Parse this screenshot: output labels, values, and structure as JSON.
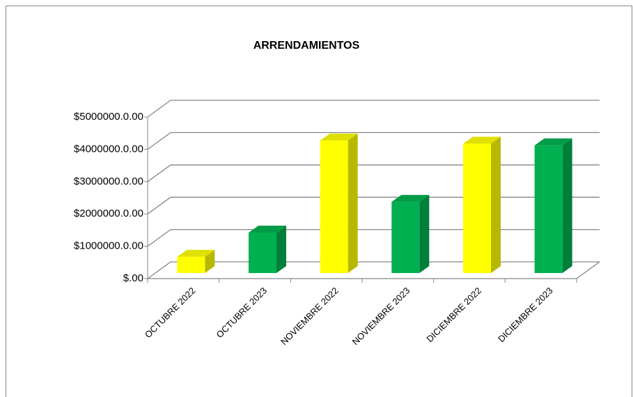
{
  "chart_data": {
    "type": "bar3d",
    "title": "ARRENDAMIENTOS",
    "categories": [
      "OCTUBRE 2022",
      "OCTUBRE 2023",
      "NOVIEMBRE 2022",
      "NOVIEMBRE 2023",
      "DICIEMBRE 2022",
      "DICIEMBRE 2023"
    ],
    "values": [
      500000,
      1250000,
      4100000,
      2200000,
      4000000,
      3950000
    ],
    "colors": [
      "#ffff00",
      "#00b050",
      "#ffff00",
      "#00b050",
      "#ffff00",
      "#00b050"
    ],
    "ylim": [
      0,
      5000000
    ],
    "yticks": [
      {
        "value": 0,
        "label": "$.00"
      },
      {
        "value": 1000000,
        "label": "$1000000.0.00"
      },
      {
        "value": 2000000,
        "label": "$2000000.0.00"
      },
      {
        "value": 3000000,
        "label": "$3000000.0.00"
      },
      {
        "value": 4000000,
        "label": "$4000000.0.00"
      },
      {
        "value": 5000000,
        "label": "$5000000.0.00"
      }
    ],
    "grid": true
  }
}
